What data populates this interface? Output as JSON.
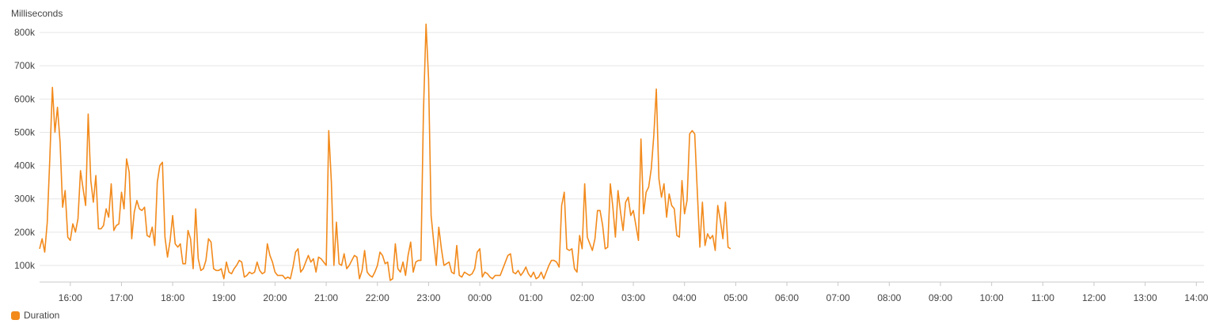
{
  "chart_data": {
    "type": "line",
    "ylabel": "Milliseconds",
    "ylim": [
      50000,
      850000
    ],
    "y_ticks": [
      100000,
      200000,
      300000,
      400000,
      500000,
      600000,
      700000,
      800000
    ],
    "y_tick_labels": [
      "100k",
      "200k",
      "300k",
      "400k",
      "500k",
      "600k",
      "700k",
      "800k"
    ],
    "x_range_hours": [
      15.4,
      14.15
    ],
    "x_ticks": [
      "16:00",
      "17:00",
      "18:00",
      "19:00",
      "20:00",
      "21:00",
      "22:00",
      "23:00",
      "00:00",
      "01:00",
      "02:00",
      "03:00",
      "04:00",
      "05:00",
      "06:00",
      "07:00",
      "08:00",
      "09:00",
      "10:00",
      "11:00",
      "12:00",
      "13:00",
      "14:00"
    ],
    "grid": true,
    "legend_position": "bottom-left",
    "series": [
      {
        "name": "Duration",
        "color": "#f28a1c",
        "points": [
          [
            "15:24",
            150000
          ],
          [
            "15:27",
            180000
          ],
          [
            "15:30",
            140000
          ],
          [
            "15:33",
            230000
          ],
          [
            "15:36",
            420000
          ],
          [
            "15:39",
            635000
          ],
          [
            "15:42",
            500000
          ],
          [
            "15:45",
            575000
          ],
          [
            "15:48",
            470000
          ],
          [
            "15:51",
            275000
          ],
          [
            "15:54",
            325000
          ],
          [
            "15:57",
            185000
          ],
          [
            "16:00",
            175000
          ],
          [
            "16:03",
            225000
          ],
          [
            "16:06",
            200000
          ],
          [
            "16:09",
            240000
          ],
          [
            "16:12",
            385000
          ],
          [
            "16:15",
            330000
          ],
          [
            "16:18",
            280000
          ],
          [
            "16:21",
            555000
          ],
          [
            "16:24",
            355000
          ],
          [
            "16:27",
            290000
          ],
          [
            "16:30",
            370000
          ],
          [
            "16:33",
            210000
          ],
          [
            "16:36",
            210000
          ],
          [
            "16:39",
            220000
          ],
          [
            "16:42",
            270000
          ],
          [
            "16:45",
            245000
          ],
          [
            "16:48",
            345000
          ],
          [
            "16:51",
            205000
          ],
          [
            "16:54",
            220000
          ],
          [
            "16:57",
            225000
          ],
          [
            "17:00",
            320000
          ],
          [
            "17:03",
            270000
          ],
          [
            "17:06",
            420000
          ],
          [
            "17:09",
            380000
          ],
          [
            "17:12",
            180000
          ],
          [
            "17:15",
            260000
          ],
          [
            "17:18",
            295000
          ],
          [
            "17:21",
            270000
          ],
          [
            "17:24",
            265000
          ],
          [
            "17:27",
            275000
          ],
          [
            "17:30",
            190000
          ],
          [
            "17:33",
            185000
          ],
          [
            "17:36",
            215000
          ],
          [
            "17:39",
            160000
          ],
          [
            "17:42",
            350000
          ],
          [
            "17:45",
            400000
          ],
          [
            "17:48",
            410000
          ],
          [
            "17:51",
            185000
          ],
          [
            "17:54",
            125000
          ],
          [
            "17:57",
            175000
          ],
          [
            "18:00",
            250000
          ],
          [
            "18:03",
            165000
          ],
          [
            "18:06",
            155000
          ],
          [
            "18:09",
            165000
          ],
          [
            "18:12",
            105000
          ],
          [
            "18:15",
            105000
          ],
          [
            "18:18",
            205000
          ],
          [
            "18:21",
            180000
          ],
          [
            "18:24",
            90000
          ],
          [
            "18:27",
            270000
          ],
          [
            "18:30",
            120000
          ],
          [
            "18:33",
            85000
          ],
          [
            "18:36",
            90000
          ],
          [
            "18:39",
            115000
          ],
          [
            "18:42",
            180000
          ],
          [
            "18:45",
            170000
          ],
          [
            "18:48",
            90000
          ],
          [
            "18:51",
            85000
          ],
          [
            "18:54",
            85000
          ],
          [
            "18:57",
            90000
          ],
          [
            "19:00",
            60000
          ],
          [
            "19:03",
            110000
          ],
          [
            "19:06",
            80000
          ],
          [
            "19:09",
            75000
          ],
          [
            "19:12",
            90000
          ],
          [
            "19:15",
            100000
          ],
          [
            "19:18",
            115000
          ],
          [
            "19:21",
            110000
          ],
          [
            "19:24",
            65000
          ],
          [
            "19:27",
            70000
          ],
          [
            "19:30",
            80000
          ],
          [
            "19:33",
            75000
          ],
          [
            "19:36",
            80000
          ],
          [
            "19:39",
            110000
          ],
          [
            "19:42",
            85000
          ],
          [
            "19:45",
            75000
          ],
          [
            "19:48",
            80000
          ],
          [
            "19:51",
            165000
          ],
          [
            "19:54",
            130000
          ],
          [
            "19:57",
            110000
          ],
          [
            "20:00",
            80000
          ],
          [
            "20:03",
            70000
          ],
          [
            "20:06",
            70000
          ],
          [
            "20:09",
            70000
          ],
          [
            "20:12",
            60000
          ],
          [
            "20:15",
            65000
          ],
          [
            "20:18",
            60000
          ],
          [
            "20:21",
            95000
          ],
          [
            "20:24",
            140000
          ],
          [
            "20:27",
            150000
          ],
          [
            "20:30",
            80000
          ],
          [
            "20:33",
            90000
          ],
          [
            "20:36",
            110000
          ],
          [
            "20:39",
            130000
          ],
          [
            "20:42",
            110000
          ],
          [
            "20:45",
            120000
          ],
          [
            "20:48",
            80000
          ],
          [
            "20:51",
            125000
          ],
          [
            "20:54",
            120000
          ],
          [
            "20:57",
            110000
          ],
          [
            "21:00",
            100000
          ],
          [
            "21:03",
            505000
          ],
          [
            "21:06",
            350000
          ],
          [
            "21:09",
            100000
          ],
          [
            "21:12",
            230000
          ],
          [
            "21:15",
            105000
          ],
          [
            "21:18",
            100000
          ],
          [
            "21:21",
            135000
          ],
          [
            "21:24",
            90000
          ],
          [
            "21:27",
            100000
          ],
          [
            "21:30",
            115000
          ],
          [
            "21:33",
            130000
          ],
          [
            "21:36",
            125000
          ],
          [
            "21:39",
            60000
          ],
          [
            "21:42",
            85000
          ],
          [
            "21:45",
            145000
          ],
          [
            "21:48",
            80000
          ],
          [
            "21:51",
            70000
          ],
          [
            "21:54",
            65000
          ],
          [
            "21:57",
            80000
          ],
          [
            "22:00",
            100000
          ],
          [
            "22:03",
            140000
          ],
          [
            "22:06",
            130000
          ],
          [
            "22:09",
            105000
          ],
          [
            "22:12",
            110000
          ],
          [
            "22:15",
            55000
          ],
          [
            "22:18",
            60000
          ],
          [
            "22:21",
            165000
          ],
          [
            "22:24",
            90000
          ],
          [
            "22:27",
            80000
          ],
          [
            "22:30",
            110000
          ],
          [
            "22:33",
            70000
          ],
          [
            "22:36",
            130000
          ],
          [
            "22:39",
            170000
          ],
          [
            "22:42",
            80000
          ],
          [
            "22:45",
            110000
          ],
          [
            "22:48",
            115000
          ],
          [
            "22:51",
            115000
          ],
          [
            "22:54",
            560000
          ],
          [
            "22:57",
            825000
          ],
          [
            "23:00",
            660000
          ],
          [
            "23:03",
            250000
          ],
          [
            "23:06",
            170000
          ],
          [
            "23:09",
            100000
          ],
          [
            "23:12",
            215000
          ],
          [
            "23:15",
            150000
          ],
          [
            "23:18",
            100000
          ],
          [
            "23:21",
            105000
          ],
          [
            "23:24",
            110000
          ],
          [
            "23:27",
            80000
          ],
          [
            "23:30",
            75000
          ],
          [
            "23:33",
            160000
          ],
          [
            "23:36",
            70000
          ],
          [
            "23:39",
            65000
          ],
          [
            "23:42",
            80000
          ],
          [
            "23:45",
            75000
          ],
          [
            "23:48",
            70000
          ],
          [
            "23:51",
            75000
          ],
          [
            "23:54",
            90000
          ],
          [
            "23:57",
            140000
          ],
          [
            "00:00",
            150000
          ],
          [
            "00:03",
            65000
          ],
          [
            "00:06",
            80000
          ],
          [
            "00:09",
            75000
          ],
          [
            "00:12",
            65000
          ],
          [
            "00:15",
            60000
          ],
          [
            "00:18",
            70000
          ],
          [
            "00:21",
            70000
          ],
          [
            "00:24",
            70000
          ],
          [
            "00:27",
            90000
          ],
          [
            "00:30",
            110000
          ],
          [
            "00:33",
            130000
          ],
          [
            "00:36",
            135000
          ],
          [
            "00:39",
            80000
          ],
          [
            "00:42",
            75000
          ],
          [
            "00:45",
            85000
          ],
          [
            "00:48",
            70000
          ],
          [
            "00:51",
            80000
          ],
          [
            "00:54",
            95000
          ],
          [
            "00:57",
            75000
          ],
          [
            "01:00",
            65000
          ],
          [
            "01:03",
            80000
          ],
          [
            "01:06",
            60000
          ],
          [
            "01:09",
            65000
          ],
          [
            "01:12",
            80000
          ],
          [
            "01:15",
            60000
          ],
          [
            "01:18",
            80000
          ],
          [
            "01:21",
            100000
          ],
          [
            "01:24",
            115000
          ],
          [
            "01:27",
            115000
          ],
          [
            "01:30",
            110000
          ],
          [
            "01:33",
            95000
          ],
          [
            "01:36",
            280000
          ],
          [
            "01:39",
            320000
          ],
          [
            "01:42",
            150000
          ],
          [
            "01:45",
            145000
          ],
          [
            "01:48",
            150000
          ],
          [
            "01:51",
            90000
          ],
          [
            "01:54",
            80000
          ],
          [
            "01:57",
            190000
          ],
          [
            "02:00",
            150000
          ],
          [
            "02:03",
            345000
          ],
          [
            "02:06",
            185000
          ],
          [
            "02:09",
            165000
          ],
          [
            "02:12",
            145000
          ],
          [
            "02:15",
            180000
          ],
          [
            "02:18",
            265000
          ],
          [
            "02:21",
            265000
          ],
          [
            "02:24",
            220000
          ],
          [
            "02:27",
            150000
          ],
          [
            "02:30",
            155000
          ],
          [
            "02:33",
            345000
          ],
          [
            "02:36",
            275000
          ],
          [
            "02:39",
            185000
          ],
          [
            "02:42",
            325000
          ],
          [
            "02:45",
            260000
          ],
          [
            "02:48",
            205000
          ],
          [
            "02:51",
            290000
          ],
          [
            "02:54",
            305000
          ],
          [
            "02:57",
            250000
          ],
          [
            "03:00",
            265000
          ],
          [
            "03:03",
            220000
          ],
          [
            "03:06",
            175000
          ],
          [
            "03:09",
            480000
          ],
          [
            "03:12",
            255000
          ],
          [
            "03:15",
            320000
          ],
          [
            "03:18",
            335000
          ],
          [
            "03:21",
            390000
          ],
          [
            "03:24",
            490000
          ],
          [
            "03:27",
            630000
          ],
          [
            "03:30",
            360000
          ],
          [
            "03:33",
            305000
          ],
          [
            "03:36",
            345000
          ],
          [
            "03:39",
            245000
          ],
          [
            "03:42",
            315000
          ],
          [
            "03:45",
            280000
          ],
          [
            "03:48",
            270000
          ],
          [
            "03:51",
            190000
          ],
          [
            "03:54",
            185000
          ],
          [
            "03:57",
            355000
          ],
          [
            "04:00",
            255000
          ],
          [
            "04:03",
            295000
          ],
          [
            "04:06",
            495000
          ],
          [
            "04:09",
            505000
          ],
          [
            "04:12",
            495000
          ],
          [
            "04:15",
            320000
          ],
          [
            "04:18",
            155000
          ],
          [
            "04:21",
            290000
          ],
          [
            "04:24",
            160000
          ],
          [
            "04:27",
            195000
          ],
          [
            "04:30",
            180000
          ],
          [
            "04:33",
            190000
          ],
          [
            "04:36",
            145000
          ],
          [
            "04:39",
            280000
          ],
          [
            "04:42",
            235000
          ],
          [
            "04:45",
            180000
          ],
          [
            "04:48",
            290000
          ],
          [
            "04:51",
            155000
          ],
          [
            "04:54",
            150000
          ]
        ]
      }
    ]
  }
}
